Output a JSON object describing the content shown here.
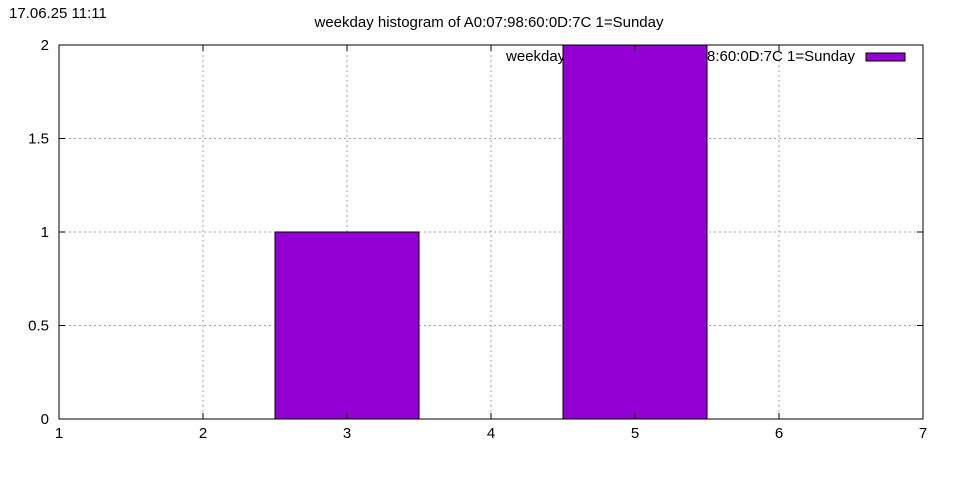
{
  "timestamp": "17.06.25 11:11",
  "chart_data": {
    "type": "bar",
    "title": "weekday histogram of A0:07:98:60:0D:7C 1=Sunday",
    "xlabel": "",
    "ylabel": "",
    "xlim": [
      1,
      7
    ],
    "ylim": [
      0,
      2
    ],
    "x_ticks": [
      "1",
      "2",
      "3",
      "4",
      "5",
      "6",
      "7"
    ],
    "y_ticks": [
      "0",
      "0.5",
      "1",
      "1.5",
      "2"
    ],
    "grid": true,
    "legend_position": "top-right",
    "bar_width": 1,
    "series": [
      {
        "name": "weekday histogram of A0:07:98:60:0D:7C 1=Sunday",
        "color": "#9400d3",
        "x": [
          3,
          5
        ],
        "values": [
          1,
          2
        ]
      }
    ]
  }
}
